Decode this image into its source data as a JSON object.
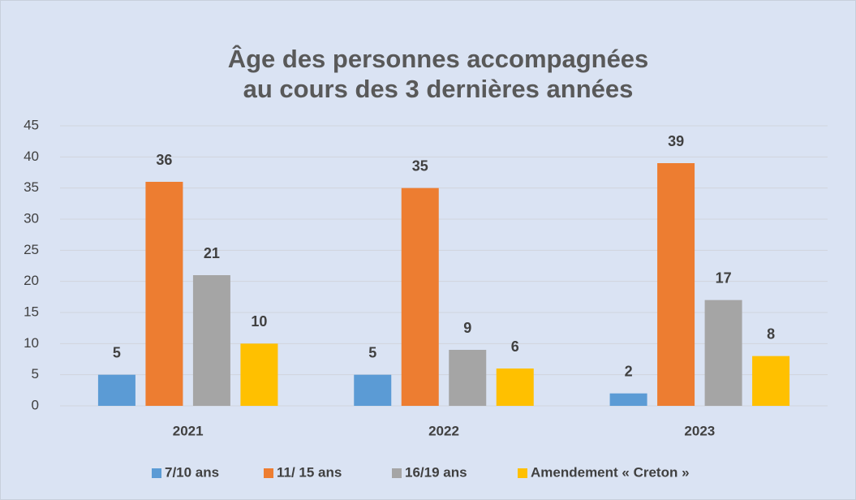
{
  "chart_data": {
    "type": "bar",
    "title": [
      "Âge des personnes accompagnées",
      "au cours des 3 dernières années"
    ],
    "categories": [
      "2021",
      "2022",
      "2023"
    ],
    "series": [
      {
        "name": "7/10 ans",
        "color": "#5b9bd5",
        "values": [
          5,
          5,
          2
        ]
      },
      {
        "name": "11/ 15 ans",
        "color": "#ed7d31",
        "values": [
          36,
          35,
          39
        ]
      },
      {
        "name": "16/19 ans",
        "color": "#a5a5a5",
        "values": [
          21,
          9,
          17
        ]
      },
      {
        "name": "Amendement « Creton »",
        "color": "#ffc000",
        "values": [
          10,
          6,
          8
        ]
      }
    ],
    "ylim": [
      0,
      45
    ],
    "yticks": [
      0,
      5,
      10,
      15,
      20,
      25,
      30,
      35,
      40,
      45
    ],
    "grid": true,
    "legend": "bottom"
  }
}
